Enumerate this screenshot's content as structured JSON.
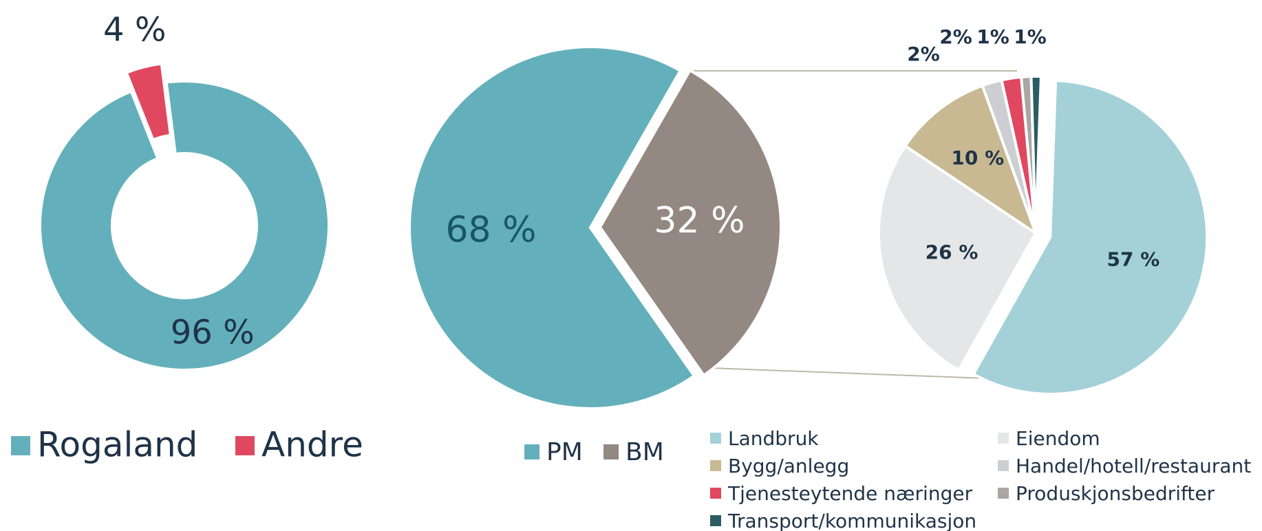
{
  "chart_data": [
    {
      "type": "donut",
      "categories": [
        "Rogaland",
        "Andre"
      ],
      "values": [
        96,
        4
      ],
      "value_labels": [
        "96 %",
        "4 %"
      ],
      "colors": [
        "#63b0bc",
        "#e0485f"
      ]
    },
    {
      "type": "pie",
      "categories": [
        "PM",
        "BM"
      ],
      "values": [
        68,
        32
      ],
      "value_labels": [
        "68 %",
        "32 %"
      ],
      "colors": [
        "#63b0bc",
        "#938882"
      ]
    },
    {
      "type": "pie",
      "categories": [
        "Landbruk",
        "Eiendom",
        "Bygg/anlegg",
        "Handel/hotell/restaurant",
        "Tjenesteytende næringer",
        "Produskjonsbedrifter",
        "Transport/kommunikasjon"
      ],
      "values": [
        57,
        26,
        10,
        2,
        2,
        1,
        1
      ],
      "value_labels": [
        "57 %",
        "26 %",
        "10 %",
        "2%",
        "2%",
        "1%",
        "1%"
      ],
      "colors": [
        "#a3d1d7",
        "#e5e6e8",
        "#c8b993",
        "#ccced1",
        "#e0485f",
        "#aaa6a3",
        "#2a5c63"
      ]
    }
  ]
}
